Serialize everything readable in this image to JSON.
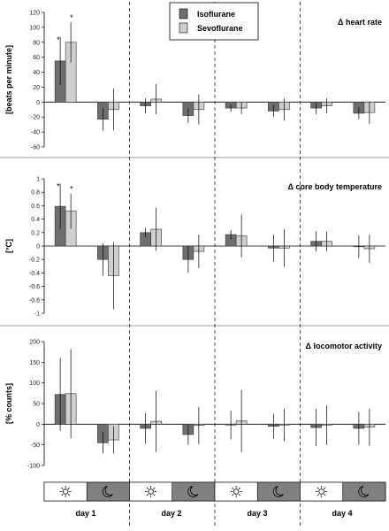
{
  "legend": {
    "items": [
      {
        "name": "Isoflurane",
        "color": "#6e6e6e"
      },
      {
        "name": "Sevoflurane",
        "color": "#cfcfcf"
      }
    ]
  },
  "days": [
    "day 1",
    "day 2",
    "day 3",
    "day 4"
  ],
  "phases": [
    "light",
    "dark",
    "light",
    "dark",
    "light",
    "dark",
    "light",
    "dark"
  ],
  "chart_data": [
    {
      "type": "bar",
      "title": "Δ heart rate",
      "ylabel": "[beats per minute]",
      "ylim": [
        -60,
        120
      ],
      "ticks": [
        "120",
        "100",
        "80",
        "60",
        "40",
        "20",
        "0",
        "-20",
        "-40",
        "-60"
      ],
      "tick_values": [
        120,
        100,
        80,
        60,
        40,
        20,
        0,
        -20,
        -40,
        -60
      ],
      "categories": [
        "day 1 light",
        "day 1 dark",
        "day 2 light",
        "day 2 dark",
        "day 3 light",
        "day 3 dark",
        "day 4 light",
        "day 4 dark"
      ],
      "series": [
        {
          "name": "Isoflurane",
          "values": [
            55,
            -23,
            -5,
            -18,
            -8,
            -12,
            -8,
            -15
          ],
          "errors": [
            32,
            15,
            10,
            10,
            5,
            8,
            8,
            8
          ],
          "significant": [
            true,
            false,
            false,
            false,
            false,
            false,
            false,
            false
          ]
        },
        {
          "name": "Sevoflurane",
          "values": [
            80,
            -10,
            4,
            -10,
            -8,
            -10,
            -5,
            -14
          ],
          "errors": [
            27,
            28,
            20,
            20,
            8,
            15,
            10,
            15
          ],
          "significant": [
            true,
            false,
            false,
            false,
            false,
            false,
            false,
            false
          ]
        }
      ]
    },
    {
      "type": "bar",
      "title": "Δ core body temperature",
      "ylabel": "[°C]",
      "ylim": [
        -1,
        1
      ],
      "ticks": [
        "1",
        "0.8",
        "0.6",
        "0.4",
        "0.2",
        "0",
        "-0.2",
        "-0.4",
        "-0.6",
        "-0.8",
        "-1"
      ],
      "tick_values": [
        1,
        0.8,
        0.6,
        0.4,
        0.2,
        0,
        -0.2,
        -0.4,
        -0.6,
        -0.8,
        -1
      ],
      "categories": [
        "day 1 light",
        "day 1 dark",
        "day 2 light",
        "day 2 dark",
        "day 3 light",
        "day 3 dark",
        "day 4 light",
        "day 4 dark"
      ],
      "series": [
        {
          "name": "Isoflurane",
          "values": [
            0.59,
            -0.2,
            0.2,
            -0.2,
            0.17,
            -0.03,
            0.07,
            -0.01
          ],
          "errors": [
            0.34,
            0.24,
            0.07,
            0.2,
            0.07,
            0.2,
            0.15,
            0.17
          ],
          "significant": [
            true,
            false,
            false,
            false,
            false,
            false,
            false,
            false
          ]
        },
        {
          "name": "Sevoflurane",
          "values": [
            0.52,
            -0.44,
            0.25,
            -0.08,
            0.15,
            -0.03,
            0.07,
            -0.04
          ],
          "errors": [
            0.26,
            0.5,
            0.32,
            0.25,
            0.32,
            0.28,
            0.15,
            0.21
          ],
          "significant": [
            true,
            false,
            false,
            false,
            false,
            false,
            false,
            false
          ]
        }
      ]
    },
    {
      "type": "bar",
      "title": "Δ locomotor activity",
      "ylabel": "[% counts]",
      "ylim": [
        -100,
        200
      ],
      "ticks": [
        "200",
        "150",
        "100",
        "50",
        "0",
        "-50",
        "-100"
      ],
      "tick_values": [
        200,
        150,
        100,
        50,
        0,
        -50,
        -100
      ],
      "categories": [
        "day 1 light",
        "day 1 dark",
        "day 2 light",
        "day 2 dark",
        "day 3 light",
        "day 3 dark",
        "day 4 light",
        "day 4 dark"
      ],
      "series": [
        {
          "name": "Isoflurane",
          "values": [
            72,
            -45,
            -10,
            -25,
            -2,
            -5,
            -8,
            -10
          ],
          "errors": [
            88,
            26,
            37,
            25,
            35,
            30,
            45,
            40
          ],
          "significant": [
            false,
            false,
            false,
            false,
            false,
            false,
            false,
            false
          ]
        },
        {
          "name": "Sevoflurane",
          "values": [
            74,
            -38,
            7,
            -3,
            8,
            -2,
            -2,
            -7
          ],
          "errors": [
            108,
            33,
            74,
            45,
            75,
            40,
            48,
            45
          ],
          "significant": [
            false,
            false,
            false,
            false,
            false,
            false,
            false,
            false
          ]
        }
      ]
    }
  ]
}
